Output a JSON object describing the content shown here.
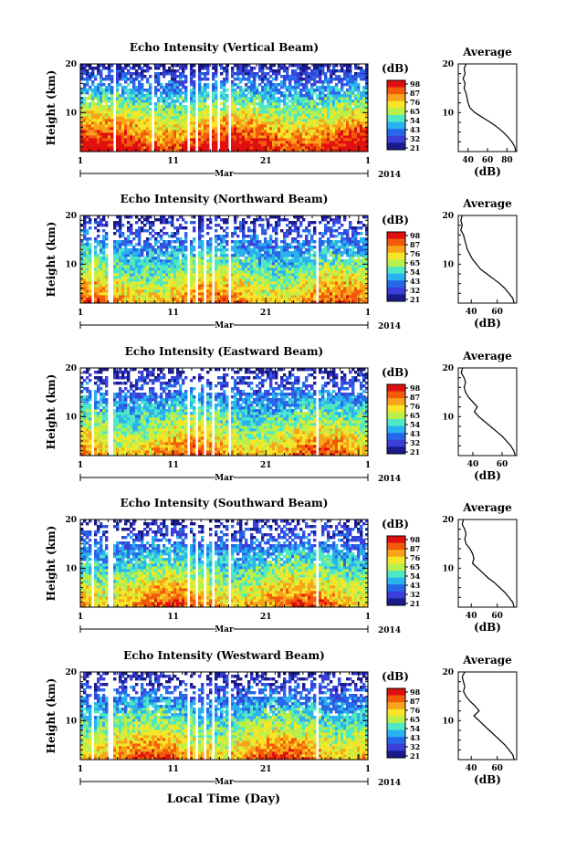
{
  "xlabel_bottom": "Local Time (Day)",
  "month_label": "Mar",
  "year_label": "2014",
  "colorbar": {
    "unit": "(dB)",
    "tick_labels": [
      "98",
      "87",
      "76",
      "65",
      "54",
      "43",
      "32",
      "21"
    ],
    "colors": [
      "#e01010",
      "#f25a0a",
      "#f7a41a",
      "#f5e62a",
      "#b8ef4a",
      "#4fe8c4",
      "#2bb1ef",
      "#2868e8",
      "#3a3fd8",
      "#1a1a8a"
    ]
  },
  "profile": {
    "title": "Average",
    "xlabel": "(dB)"
  },
  "chart_data": [
    {
      "type": "heatmap",
      "title": "Echo Intensity (Vertical Beam)",
      "ylabel": "Height (km)",
      "xlabel": "Mar",
      "x_ticks": [
        "1",
        "11",
        "21",
        "1"
      ],
      "y_ticks": [
        "10",
        "20"
      ],
      "ylim": [
        2,
        20
      ],
      "xlim_days": [
        1,
        32
      ],
      "data_gaps_days": [
        [
          4.4,
          4.8
        ],
        [
          8.7,
          8.9
        ],
        [
          12.5,
          12.8
        ],
        [
          13.4,
          13.6
        ],
        [
          14.2,
          14.4
        ],
        [
          15.0,
          15.2
        ],
        [
          15.8,
          16.1
        ],
        [
          17.0,
          17.2
        ],
        [
          26.6,
          26.8
        ]
      ],
      "level_scale": 1.0,
      "profile": {
        "x_ticks": [
          "40",
          "60",
          "80"
        ],
        "xlim": [
          30,
          90
        ],
        "height_km": [
          20,
          19,
          18,
          17,
          16,
          15,
          14,
          13,
          12,
          11,
          10,
          9,
          8,
          7,
          6,
          5,
          4,
          3,
          2
        ],
        "mean_db": [
          38,
          36,
          37,
          35,
          37,
          36,
          38,
          39,
          40,
          42,
          47,
          55,
          63,
          70,
          76,
          81,
          85,
          88,
          89
        ]
      }
    },
    {
      "type": "heatmap",
      "title": "Echo Intensity (Northward Beam)",
      "ylabel": "Height (km)",
      "xlabel": "Mar",
      "x_ticks": [
        "1",
        "11",
        "21",
        "1"
      ],
      "y_ticks": [
        "10",
        "20"
      ],
      "ylim": [
        2,
        20
      ],
      "xlim_days": [
        1,
        32
      ],
      "data_gaps_days": [
        [
          2.2,
          2.5
        ],
        [
          4.0,
          4.6
        ],
        [
          12.4,
          12.7
        ],
        [
          13.4,
          13.6
        ],
        [
          14.3,
          14.5
        ],
        [
          15.2,
          15.4
        ],
        [
          16.0,
          16.2
        ],
        [
          17.0,
          17.2
        ],
        [
          26.5,
          26.7
        ]
      ],
      "level_scale": 0.78,
      "profile": {
        "x_ticks": [
          "40",
          "60"
        ],
        "xlim": [
          30,
          75
        ],
        "height_km": [
          20,
          19,
          18,
          17,
          16,
          15,
          14,
          13,
          12,
          11,
          10,
          9,
          8,
          7,
          6,
          5,
          4,
          3,
          2
        ],
        "mean_db": [
          33,
          32,
          33,
          32,
          34,
          35,
          36,
          37,
          39,
          41,
          44,
          47,
          52,
          57,
          62,
          66,
          69,
          72,
          73
        ]
      }
    },
    {
      "type": "heatmap",
      "title": "Echo Intensity (Eastward Beam)",
      "ylabel": "Height (km)",
      "xlabel": "Mar",
      "x_ticks": [
        "1",
        "11",
        "21",
        "1"
      ],
      "y_ticks": [
        "10",
        "20"
      ],
      "ylim": [
        2,
        20
      ],
      "xlim_days": [
        1,
        32
      ],
      "data_gaps_days": [
        [
          2.2,
          2.5
        ],
        [
          4.0,
          4.6
        ],
        [
          12.4,
          12.7
        ],
        [
          13.4,
          13.6
        ],
        [
          14.3,
          14.5
        ],
        [
          15.2,
          15.4
        ],
        [
          16.0,
          16.2
        ],
        [
          17.0,
          17.2
        ],
        [
          26.5,
          26.7
        ]
      ],
      "level_scale": 0.78,
      "profile": {
        "x_ticks": [
          "40",
          "60"
        ],
        "xlim": [
          30,
          70
        ],
        "height_km": [
          20,
          19,
          18,
          17,
          16,
          15,
          14,
          13,
          12,
          11,
          10,
          9,
          8,
          7,
          6,
          5,
          4,
          3,
          2
        ],
        "mean_db": [
          33,
          32,
          34,
          35,
          34,
          35,
          37,
          40,
          43,
          41,
          44,
          48,
          52,
          56,
          60,
          63,
          66,
          68,
          69
        ]
      }
    },
    {
      "type": "heatmap",
      "title": "Echo Intensity (Southward Beam)",
      "ylabel": "Height (km)",
      "xlabel": "Mar",
      "x_ticks": [
        "1",
        "11",
        "21",
        "1"
      ],
      "y_ticks": [
        "10",
        "20"
      ],
      "ylim": [
        2,
        20
      ],
      "xlim_days": [
        1,
        32
      ],
      "data_gaps_days": [
        [
          2.2,
          2.5
        ],
        [
          4.0,
          4.6
        ],
        [
          12.4,
          12.7
        ],
        [
          13.4,
          13.6
        ],
        [
          14.3,
          14.5
        ],
        [
          15.2,
          15.4
        ],
        [
          16.0,
          16.2
        ],
        [
          17.0,
          17.2
        ],
        [
          26.5,
          26.7
        ]
      ],
      "level_scale": 0.8,
      "profile": {
        "x_ticks": [
          "40",
          "60"
        ],
        "xlim": [
          30,
          75
        ],
        "height_km": [
          20,
          19,
          18,
          17,
          16,
          15,
          14,
          13,
          12,
          11,
          10,
          9,
          8,
          7,
          6,
          5,
          4,
          3,
          2
        ],
        "mean_db": [
          34,
          33,
          35,
          36,
          35,
          36,
          39,
          41,
          42,
          41,
          45,
          49,
          53,
          58,
          62,
          66,
          69,
          72,
          73
        ]
      }
    },
    {
      "type": "heatmap",
      "title": "Echo Intensity (Westward Beam)",
      "ylabel": "Height (km)",
      "xlabel": "Mar",
      "x_ticks": [
        "1",
        "11",
        "21",
        "1"
      ],
      "y_ticks": [
        "10",
        "20"
      ],
      "ylim": [
        2,
        20
      ],
      "xlim_days": [
        1,
        32
      ],
      "data_gaps_days": [
        [
          2.2,
          2.5
        ],
        [
          4.0,
          4.6
        ],
        [
          12.4,
          12.7
        ],
        [
          13.4,
          13.6
        ],
        [
          14.3,
          14.5
        ],
        [
          15.2,
          15.4
        ],
        [
          16.0,
          16.2
        ],
        [
          17.0,
          17.2
        ],
        [
          26.5,
          26.7
        ]
      ],
      "level_scale": 0.8,
      "profile": {
        "x_ticks": [
          "40",
          "60"
        ],
        "xlim": [
          30,
          75
        ],
        "height_km": [
          20,
          19,
          18,
          17,
          16,
          15,
          14,
          13,
          12,
          11,
          10,
          9,
          8,
          7,
          6,
          5,
          4,
          3,
          2
        ],
        "mean_db": [
          35,
          33,
          34,
          35,
          34,
          36,
          39,
          43,
          46,
          42,
          46,
          50,
          54,
          58,
          62,
          66,
          69,
          72,
          73
        ]
      }
    }
  ]
}
